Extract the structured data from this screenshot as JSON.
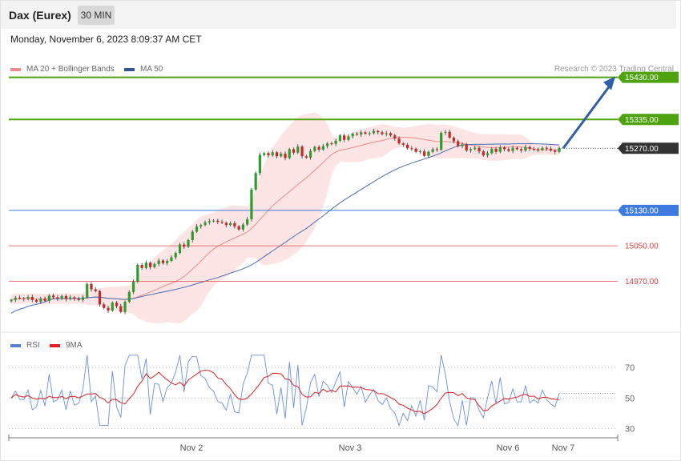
{
  "header": {
    "title": "Dax (Eurex)",
    "timeframe": "30 MIN",
    "datetime": "Monday, November 6, 2023 8:09:37 AM CET"
  },
  "legend_main": [
    {
      "label": "MA 20 + Bollinger Bands",
      "color": "#f08a8a"
    },
    {
      "label": "MA 50",
      "color": "#2f5597"
    }
  ],
  "legend_rsi": [
    {
      "label": "RSI",
      "color": "#5b7fd6"
    },
    {
      "label": "9MA",
      "color": "#e02020"
    }
  ],
  "copyright": "Research © 2023 Trading Central",
  "colors": {
    "resistance": "#4ea30f",
    "support": "#3d7be0",
    "target_red": "#e04040",
    "current": "#333333",
    "arrow": "#2f5fa8",
    "band_fill": "#fde0e0",
    "ma20": "#f08a8a",
    "ma50": "#4a6db0",
    "candle_up": "#2e9b2e",
    "candle_down": "#c62828"
  },
  "chart_data": {
    "type": "candlestick",
    "instrument": "Dax (Eurex)",
    "interval": "30 MIN",
    "x_labels": [
      "Nov 2",
      "Nov 3",
      "Nov 6",
      "Nov 7"
    ],
    "ylim": [
      14850,
      15460
    ],
    "levels": [
      {
        "value": 15430.0,
        "label": "15430.00",
        "kind": "resistance"
      },
      {
        "value": 15335.0,
        "label": "15335.00",
        "kind": "resistance"
      },
      {
        "value": 15270.0,
        "label": "15270.00",
        "kind": "current"
      },
      {
        "value": 15130.0,
        "label": "15130.00",
        "kind": "support"
      },
      {
        "value": 15050.0,
        "label": "15050.00",
        "kind": "target"
      },
      {
        "value": 14970.0,
        "label": "14970.00",
        "kind": "target"
      }
    ],
    "forecast_arrow": {
      "from": 15270,
      "to": 15430
    },
    "close_series": [
      14928,
      14933,
      14932,
      14930,
      14935,
      14928,
      14924,
      14931,
      14926,
      14938,
      14934,
      14931,
      14937,
      14930,
      14934,
      14931,
      14928,
      14934,
      14964,
      14952,
      14948,
      14918,
      14910,
      14904,
      14922,
      14914,
      14901,
      14924,
      14946,
      14969,
      15007,
      15000,
      15012,
      15002,
      15009,
      15017,
      15011,
      15016,
      15024,
      15034,
      15053,
      15048,
      15063,
      15082,
      15094,
      15097,
      15103,
      15106,
      15107,
      15104,
      15102,
      15097,
      15101,
      15094,
      15087,
      15098,
      15110,
      15177,
      15214,
      15255,
      15259,
      15254,
      15261,
      15252,
      15258,
      15248,
      15268,
      15260,
      15274,
      15252,
      15249,
      15264,
      15273,
      15267,
      15275,
      15281,
      15280,
      15287,
      15299,
      15289,
      15297,
      15303,
      15301,
      15306,
      15303,
      15304,
      15309,
      15306,
      15302,
      15304,
      15299,
      15292,
      15281,
      15278,
      15270,
      15269,
      15262,
      15263,
      15253,
      15262,
      15268,
      15267,
      15305,
      15307,
      15294,
      15286,
      15275,
      15279,
      15265,
      15268,
      15271,
      15263,
      15254,
      15259,
      15269,
      15262,
      15272,
      15268,
      15264,
      15271,
      15268,
      15265,
      15273,
      15269,
      15267,
      15266,
      15271,
      15269,
      15265,
      15262,
      15270
    ],
    "rsi": {
      "ylim": [
        25,
        80
      ],
      "levels": [
        70,
        50,
        30
      ],
      "labels": [
        "70",
        "50",
        "30"
      ],
      "rsi_last": 53,
      "ma9_last": 49
    }
  }
}
